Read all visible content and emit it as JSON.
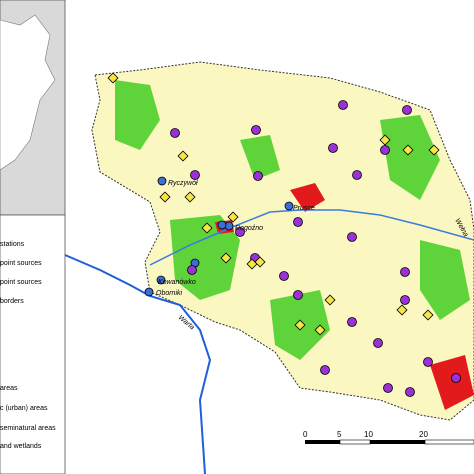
{
  "legend": {
    "items": [
      "stations",
      "point sources",
      "point sources",
      "borders",
      "areas",
      "c (urban) areas",
      "seminatural areas",
      "and wetlands"
    ]
  },
  "map": {
    "stations": [
      "Ryczywół",
      "Rogoźno",
      "Prusce",
      "Kowanówko",
      "Oborniki"
    ],
    "rivers": [
      "Warta",
      "Wełna"
    ]
  },
  "scale": {
    "ticks": [
      "0",
      "5",
      "10",
      "20"
    ]
  }
}
